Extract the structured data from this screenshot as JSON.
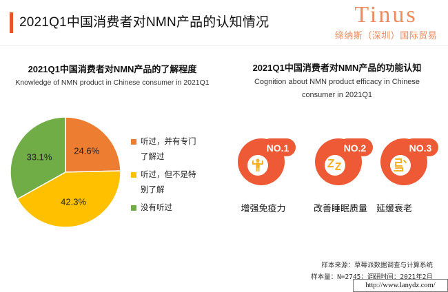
{
  "header": {
    "title": "2021Q1中国消费者对NMN产品的认知情况",
    "brand_name": "Tinus",
    "brand_sub": "缔纳斯（深圳）国际贸易"
  },
  "left_panel": {
    "title": "2021Q1中国消费者对NMN产品的了解程度",
    "subtitle": "Knowledge of NMN product in Chinese consumer in 2021Q1"
  },
  "right_panel": {
    "title": "2021Q1中国消费者对NMN产品的功能认知",
    "subtitle_line1": "Cognition about NMN product efficacy in Chinese",
    "subtitle_line2": "consumer in 2021Q1",
    "items": [
      {
        "rank": "NO.1",
        "label": "增强免疫力",
        "icon": "strength-person-icon"
      },
      {
        "rank": "NO.2",
        "label": "改善睡眠质量",
        "icon": "sleep-zzz-icon"
      },
      {
        "rank": "NO.3",
        "label": "延缓衰老",
        "icon": "anti-aging-icon"
      }
    ],
    "badge_color": "#ee5a35",
    "icon_color": "#f6b026"
  },
  "chart_data": {
    "type": "pie",
    "categories": [
      "听过，并有专门了解过",
      "听过，但不是特别了解",
      "没有听过"
    ],
    "values": [
      24.6,
      42.3,
      33.1
    ],
    "labels": [
      "24.6%",
      "42.3%",
      "33.1%"
    ],
    "colors": [
      "#ed7d31",
      "#ffc000",
      "#70ad47"
    ],
    "legend": {
      "placement": "right",
      "entries": [
        {
          "line1": "听过，并有专门",
          "line2": "了解过"
        },
        {
          "line1": "听过，但不是特",
          "line2": "别了解"
        },
        {
          "line1": "没有听过",
          "line2": ""
        }
      ]
    }
  },
  "footer": {
    "source": "样本来源：草莓派数据调查与计算系统",
    "sample": "样本量：N=2745；调研时间：2021年2月",
    "url": "http://www.lanydz.com/"
  }
}
